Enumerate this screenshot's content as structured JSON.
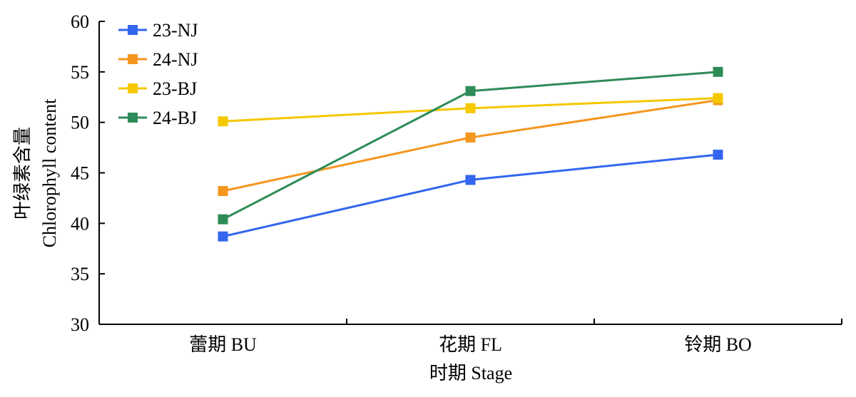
{
  "chart_data": {
    "type": "line",
    "categories": [
      "蕾期 BU",
      "花期 FL",
      "铃期 BO"
    ],
    "series": [
      {
        "name": "23-NJ",
        "color": "#3366ee",
        "values": [
          38.7,
          44.3,
          46.8
        ]
      },
      {
        "name": "24-NJ",
        "color": "#f5961e",
        "values": [
          43.2,
          48.5,
          52.2
        ]
      },
      {
        "name": "23-BJ",
        "color": "#f5c800",
        "values": [
          50.1,
          51.4,
          52.4
        ]
      },
      {
        "name": "24-BJ",
        "color": "#2e8b57",
        "values": [
          40.4,
          53.1,
          55.0
        ]
      }
    ],
    "title": "",
    "xlabel": "时期 Stage",
    "ylabel_line1": "叶绿素含量",
    "ylabel_line2": "Chlorophyll content",
    "ylim": [
      30,
      60
    ],
    "yticks": [
      30,
      35,
      40,
      45,
      50,
      55,
      60
    ],
    "grid": false,
    "legend_position": "top-left"
  }
}
